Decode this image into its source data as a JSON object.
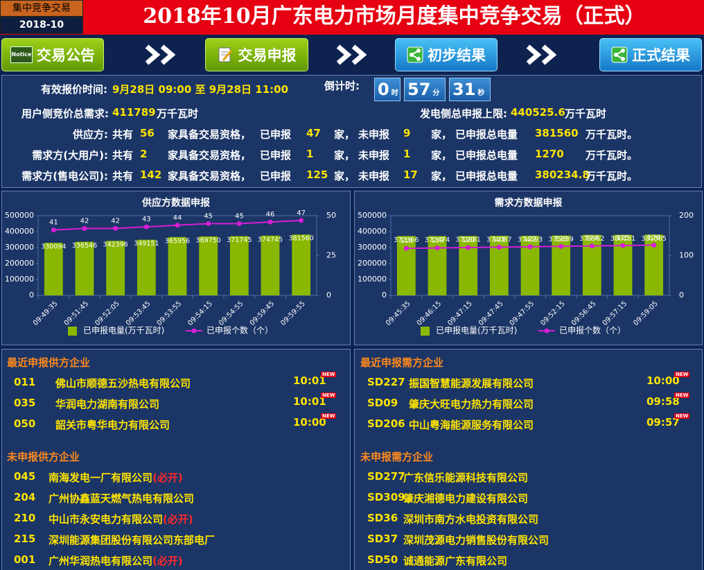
{
  "header": {
    "badge_title": "集中竞争交易",
    "badge_date": "2018-10",
    "title": "2018年10月广东电力市场月度集中竞争交易（正式）"
  },
  "nav": [
    {
      "icon_text": "Notice",
      "label": "交易公告"
    },
    {
      "label": "交易申报"
    },
    {
      "label": "初步结果"
    },
    {
      "label": "正式结果"
    }
  ],
  "info": {
    "time_label": "有效报价时间:",
    "time_value": "9月28日 09:00 至 9月28日 11:00",
    "countdown_label": "倒计时:",
    "countdown": [
      {
        "value": 0,
        "unit": "时"
      },
      {
        "value": 57,
        "unit": "分"
      },
      {
        "value": 31,
        "unit": "秒"
      }
    ],
    "demand_label": "用户侧竞价总需求:",
    "demand_value": 411789,
    "unit": "万千瓦时",
    "supply_cap_label": "发电侧总申报上限:",
    "supply_cap_value": 440525.6,
    "phrases": {
      "total": "共有",
      "qualified": "家具备交易资格，",
      "declared": "已申报",
      "jia": "家，",
      "undeclared": "未申报",
      "energy": "已申报总电量",
      "end": "万千瓦时。"
    },
    "rows": [
      {
        "party": "供应方:",
        "total": 56,
        "declared": 47,
        "undeclared": 9,
        "energy": 381560
      },
      {
        "party": "需求方(大用户):",
        "total": 2,
        "declared": 1,
        "undeclared": 1,
        "energy": 1270
      },
      {
        "party": "需求方(售电公司):",
        "total": 142,
        "declared": 125,
        "undeclared": 17,
        "energy": 380234.8
      }
    ]
  },
  "chart_data": [
    {
      "type": "bar_line",
      "title": "供应方数据申报",
      "categories": [
        "09:49:35",
        "09:51:45",
        "09:52:05",
        "09:53:45",
        "09:53:55",
        "09:54:15",
        "09:54:55",
        "09:59:45",
        "09:59:55"
      ],
      "series": [
        {
          "name": "已申报电量(万千瓦时)",
          "color": "#8ab800",
          "type": "bar",
          "values": [
            330094,
            336546,
            342396,
            349151,
            365956,
            369750,
            371745,
            374745,
            381560
          ]
        },
        {
          "name": "已申报个数（个）",
          "color": "#d61ed6",
          "type": "line",
          "axis": "y2",
          "values": [
            41,
            42,
            42,
            43,
            44,
            45,
            45,
            46,
            47
          ]
        }
      ],
      "ylim": [
        0,
        500000
      ],
      "yticks": [
        0,
        100000,
        200000,
        300000,
        400000,
        500000
      ],
      "y2lim": [
        0,
        50
      ],
      "y2ticks": [
        0,
        25,
        50
      ],
      "legend": "bottom"
    },
    {
      "type": "bar_line",
      "title": "需求方数据申报",
      "categories": [
        "09:45:35",
        "09:46:15",
        "09:47:15",
        "09:47:45",
        "09:47:55",
        "09:52:15",
        "09:56:45",
        "09:57:15",
        "09:59:05"
      ],
      "series": [
        {
          "name": "已申报电量(万千瓦时)",
          "color": "#8ab800",
          "type": "bar",
          "values": [
            372366,
            372474,
            372881,
            374087,
            374093,
            375839,
            379962,
            380131,
            381505
          ]
        },
        {
          "name": "已申报个数（个）",
          "color": "#d61ed6",
          "type": "line",
          "axis": "y2",
          "values": [
            118,
            119,
            120,
            121,
            122,
            123,
            124,
            125,
            126
          ]
        }
      ],
      "ylim": [
        0,
        500000
      ],
      "yticks": [
        0,
        100000,
        200000,
        300000,
        400000,
        500000
      ],
      "y2lim": [
        0,
        200
      ],
      "y2ticks": [
        0,
        100,
        200
      ],
      "legend": "bottom"
    }
  ],
  "new_badge": "NEW",
  "lists": {
    "recent_supply": {
      "title": "最近申报供方企业",
      "items": [
        {
          "code": "011",
          "name": "佛山市顺德五沙热电有限公司",
          "time": "10:01"
        },
        {
          "code": "035",
          "name": "华润电力湖南有限公司",
          "time": "10:01"
        },
        {
          "code": "050",
          "name": "韶关市粤华电力有限公司",
          "time": "10:00"
        }
      ]
    },
    "recent_demand": {
      "title": "最近申报需方企业",
      "items": [
        {
          "code": "SD227",
          "name": "振国智慧能源发展有限公司",
          "time": "10:00"
        },
        {
          "code": "SD09",
          "name": "肇庆大旺电力热力有限公司",
          "time": "09:58"
        },
        {
          "code": "SD206",
          "name": "中山粤海能源服务有限公司",
          "time": "09:57"
        }
      ]
    },
    "pending_supply": {
      "title": "未申报供方企业",
      "items": [
        {
          "code": "045",
          "name": "南海发电一厂有限公司",
          "tag": "(必开)"
        },
        {
          "code": "204",
          "name": "广州协鑫蓝天燃气热电有限公司"
        },
        {
          "code": "210",
          "name": "中山市永安电力有限公司",
          "tag": "(必开)"
        },
        {
          "code": "215",
          "name": "深圳能源集团股份有限公司东部电厂"
        },
        {
          "code": "001",
          "name": "广州华润热电有限公司",
          "tag": "(必开)"
        }
      ]
    },
    "pending_demand": {
      "title": "未申报需方企业",
      "items": [
        {
          "code": "SD277",
          "name": "广东信乐能源科技有限公司"
        },
        {
          "code": "SD309",
          "name": "肇庆湘德电力建设有限公司"
        },
        {
          "code": "SD36",
          "name": "深圳市南方水电投资有限公司"
        },
        {
          "code": "SD37",
          "name": "深圳茂源电力销售股份有限公司"
        },
        {
          "code": "SD50",
          "name": "诚通能源广东有限公司"
        }
      ]
    }
  }
}
